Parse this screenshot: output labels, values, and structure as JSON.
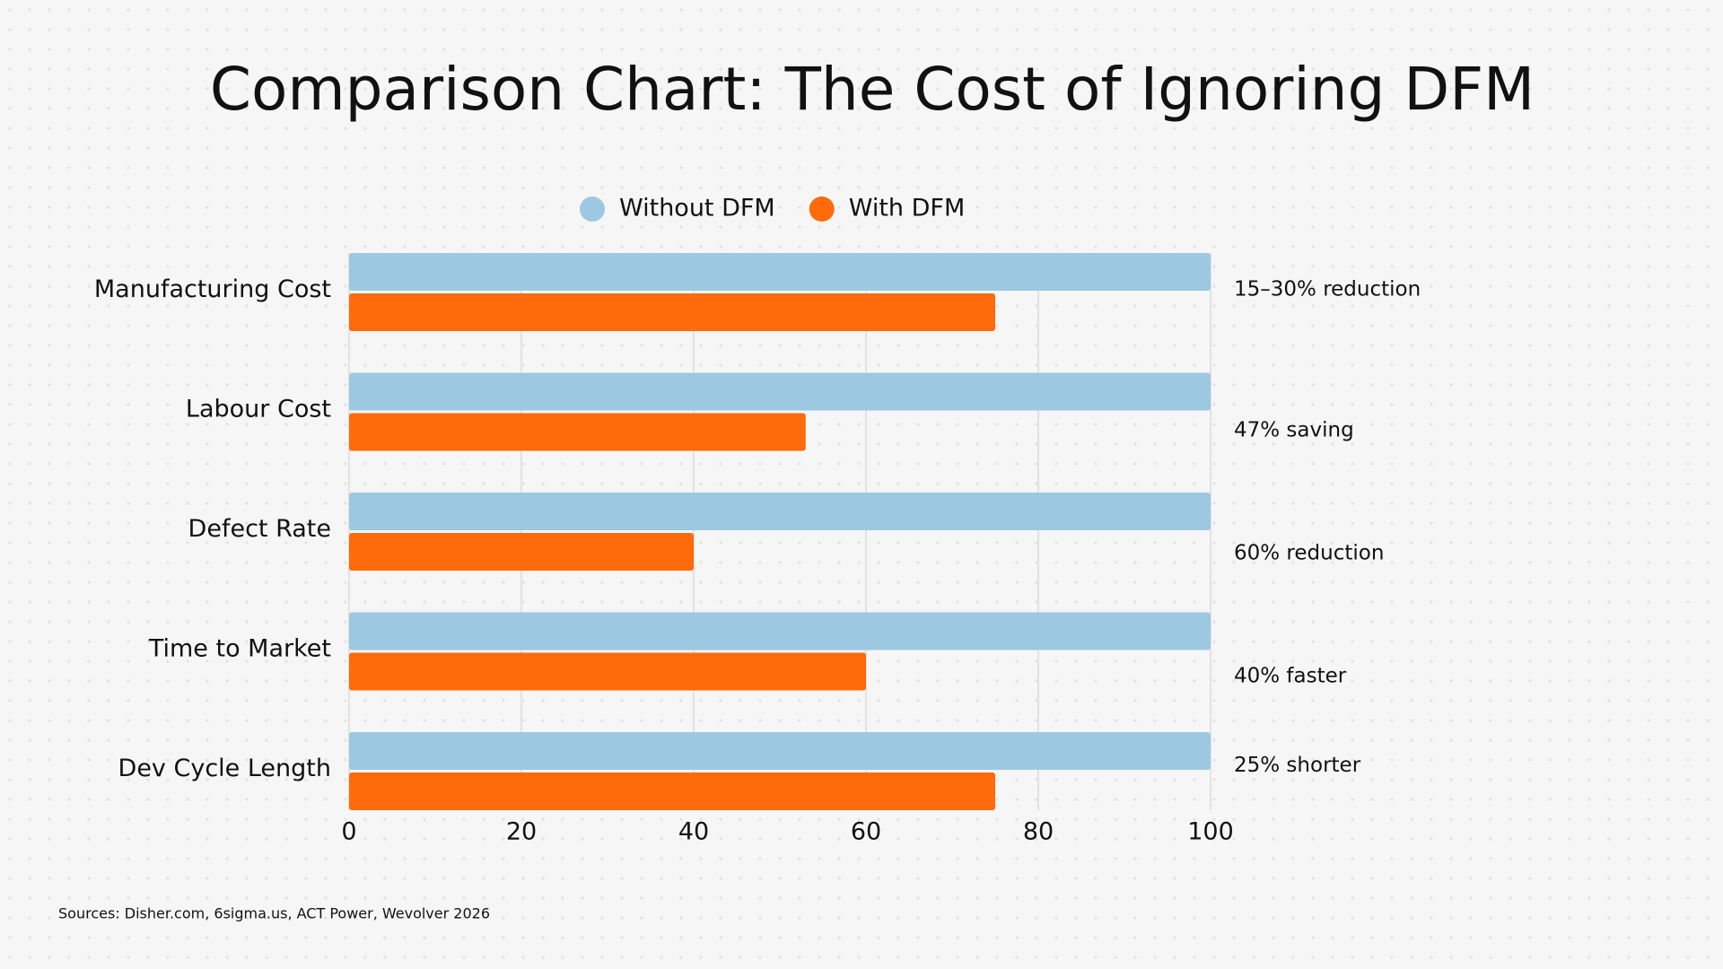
{
  "chart_data": {
    "type": "bar",
    "orientation": "horizontal",
    "title": "Comparison Chart: The Cost of Ignoring DFM",
    "categories": [
      "Manufacturing Cost",
      "Labour Cost",
      "Defect Rate",
      "Time to Market",
      "Dev Cycle Length"
    ],
    "series": [
      {
        "name": "Without DFM",
        "color": "#9dc8e2",
        "values": [
          100,
          100,
          100,
          100,
          100
        ]
      },
      {
        "name": "With DFM",
        "color": "#ff6a0a",
        "values": [
          75,
          53,
          40,
          60,
          75
        ]
      }
    ],
    "annotations": [
      "15–30% reduction",
      "47% saving",
      "60% reduction",
      "40% faster",
      "25% shorter"
    ],
    "xlim": [
      0,
      100
    ],
    "xticks": [
      0,
      20,
      40,
      60,
      80,
      100
    ],
    "grid": true,
    "source": "Sources: Disher.com, 6sigma.us, ACT Power, Wevolver 2026"
  }
}
